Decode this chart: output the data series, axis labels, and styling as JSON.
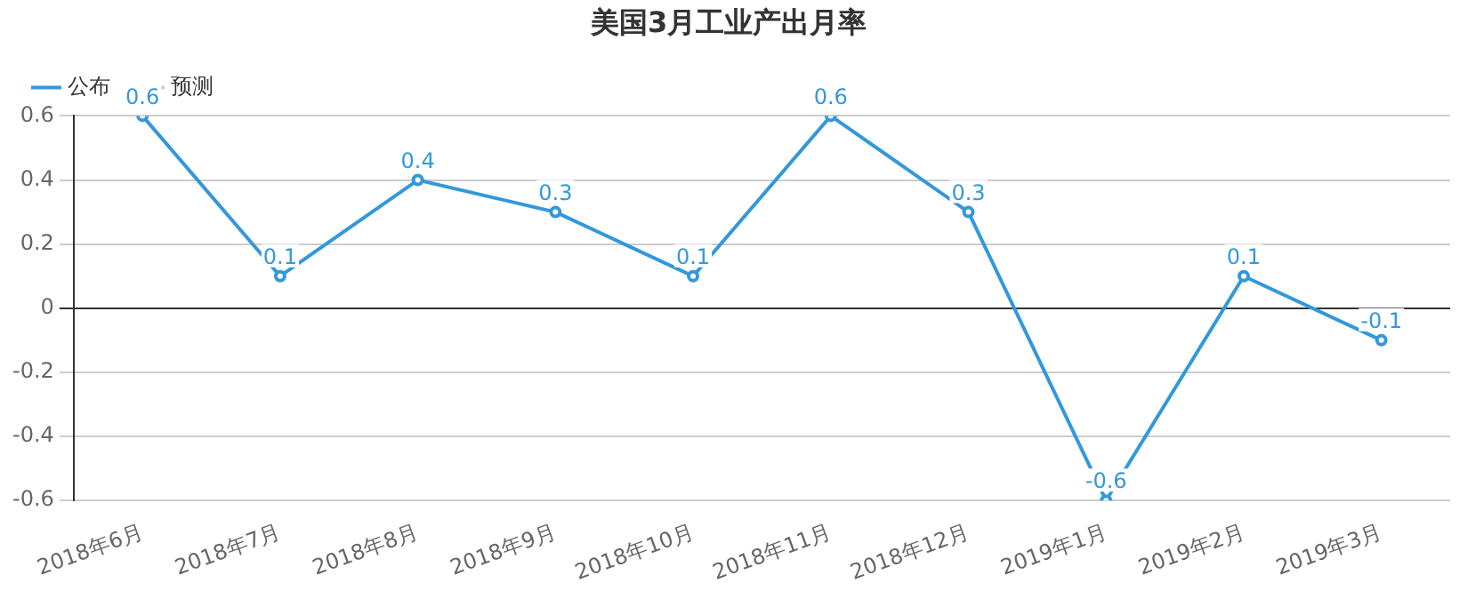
{
  "chart_data": {
    "type": "line",
    "title": "美国3月工业产出月率",
    "categories": [
      "2018年6月",
      "2018年7月",
      "2018年8月",
      "2018年9月",
      "2018年10月",
      "2018年11月",
      "2018年12月",
      "2019年1月",
      "2019年2月",
      "2019年3月"
    ],
    "series": [
      {
        "name": "公布",
        "color": "#3398db",
        "values": [
          0.6,
          0.1,
          0.4,
          0.3,
          0.1,
          0.6,
          0.3,
          -0.6,
          0.1,
          -0.1
        ]
      },
      {
        "name": "预测",
        "color": "#cccccc",
        "values": [
          null,
          null,
          null,
          null,
          null,
          null,
          null,
          null,
          null,
          null
        ]
      }
    ],
    "ylim": [
      -0.6,
      0.6
    ],
    "yticks": [
      -0.6,
      -0.4,
      -0.2,
      0,
      0.2,
      0.4,
      0.6
    ],
    "grid": "y",
    "legend": "top left",
    "marker": "circle",
    "line_style": "solid",
    "data_labels": true
  }
}
